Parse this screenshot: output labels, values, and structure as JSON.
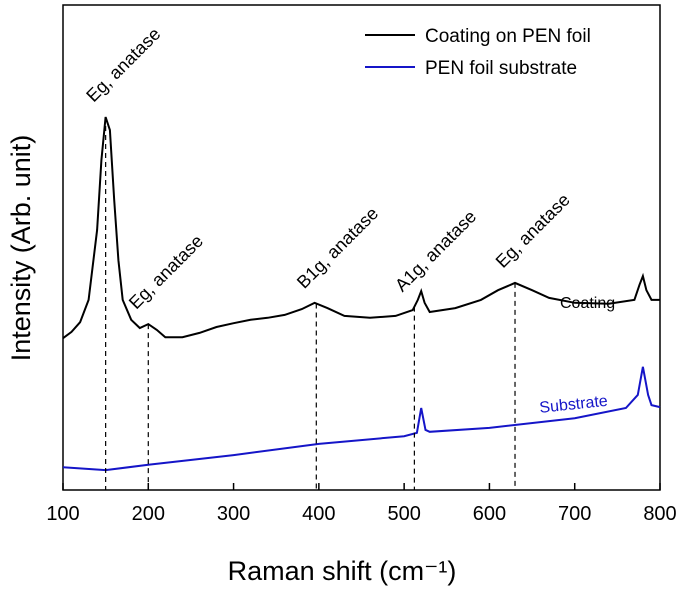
{
  "chart_data": {
    "type": "line",
    "xlabel": "Raman shift (cm⁻¹)",
    "ylabel": "Intensity (Arb. unit)",
    "xlim": [
      100,
      800
    ],
    "xticks": [
      100,
      200,
      300,
      400,
      500,
      600,
      700,
      800
    ],
    "ylim": [
      0,
      100
    ],
    "legend": "top-right",
    "series": [
      {
        "name": "Coating on PEN foil",
        "label": "Coating",
        "color": "#000000",
        "x": [
          100,
          110,
          120,
          130,
          140,
          145,
          150,
          155,
          160,
          165,
          170,
          180,
          190,
          200,
          210,
          220,
          240,
          260,
          280,
          300,
          320,
          340,
          360,
          380,
          395,
          410,
          430,
          460,
          490,
          510,
          516,
          520,
          524,
          530,
          560,
          590,
          610,
          630,
          650,
          670,
          700,
          740,
          770,
          776,
          780,
          784,
          790,
          800
        ],
        "values": [
          31.3,
          32.6,
          34.6,
          39.2,
          53.6,
          68.0,
          76.9,
          74.2,
          59.8,
          47.4,
          39.2,
          35.1,
          33.4,
          34.2,
          33.0,
          31.5,
          31.5,
          32.4,
          33.6,
          34.4,
          35.1,
          35.5,
          36.1,
          37.3,
          38.6,
          37.5,
          35.9,
          35.5,
          35.9,
          37.1,
          39.2,
          41.0,
          38.6,
          36.7,
          37.5,
          39.2,
          41.2,
          42.7,
          41.2,
          39.6,
          38.6,
          38.4,
          39.2,
          42.3,
          44.1,
          41.2,
          39.2,
          39.2
        ]
      },
      {
        "name": "PEN foil substrate",
        "label": "Substrate",
        "color": "#1515c8",
        "x": [
          100,
          150,
          200,
          300,
          400,
          500,
          515,
          520,
          525,
          530,
          600,
          700,
          760,
          774,
          780,
          786,
          790,
          800
        ],
        "values": [
          4.7,
          4.1,
          5.2,
          7.2,
          9.5,
          11.1,
          11.8,
          16.9,
          12.4,
          12.0,
          12.8,
          14.8,
          16.9,
          19.6,
          25.4,
          19.6,
          17.5,
          17.1
        ]
      }
    ],
    "annotations": [
      {
        "text": "Eg, anatase",
        "x": 150
      },
      {
        "text": "Eg, anatase",
        "x": 200
      },
      {
        "text": "B1g, anatase",
        "x": 397
      },
      {
        "text": "A1g, anatase",
        "x": 512
      },
      {
        "text": "Eg, anatase",
        "x": 630
      }
    ]
  }
}
